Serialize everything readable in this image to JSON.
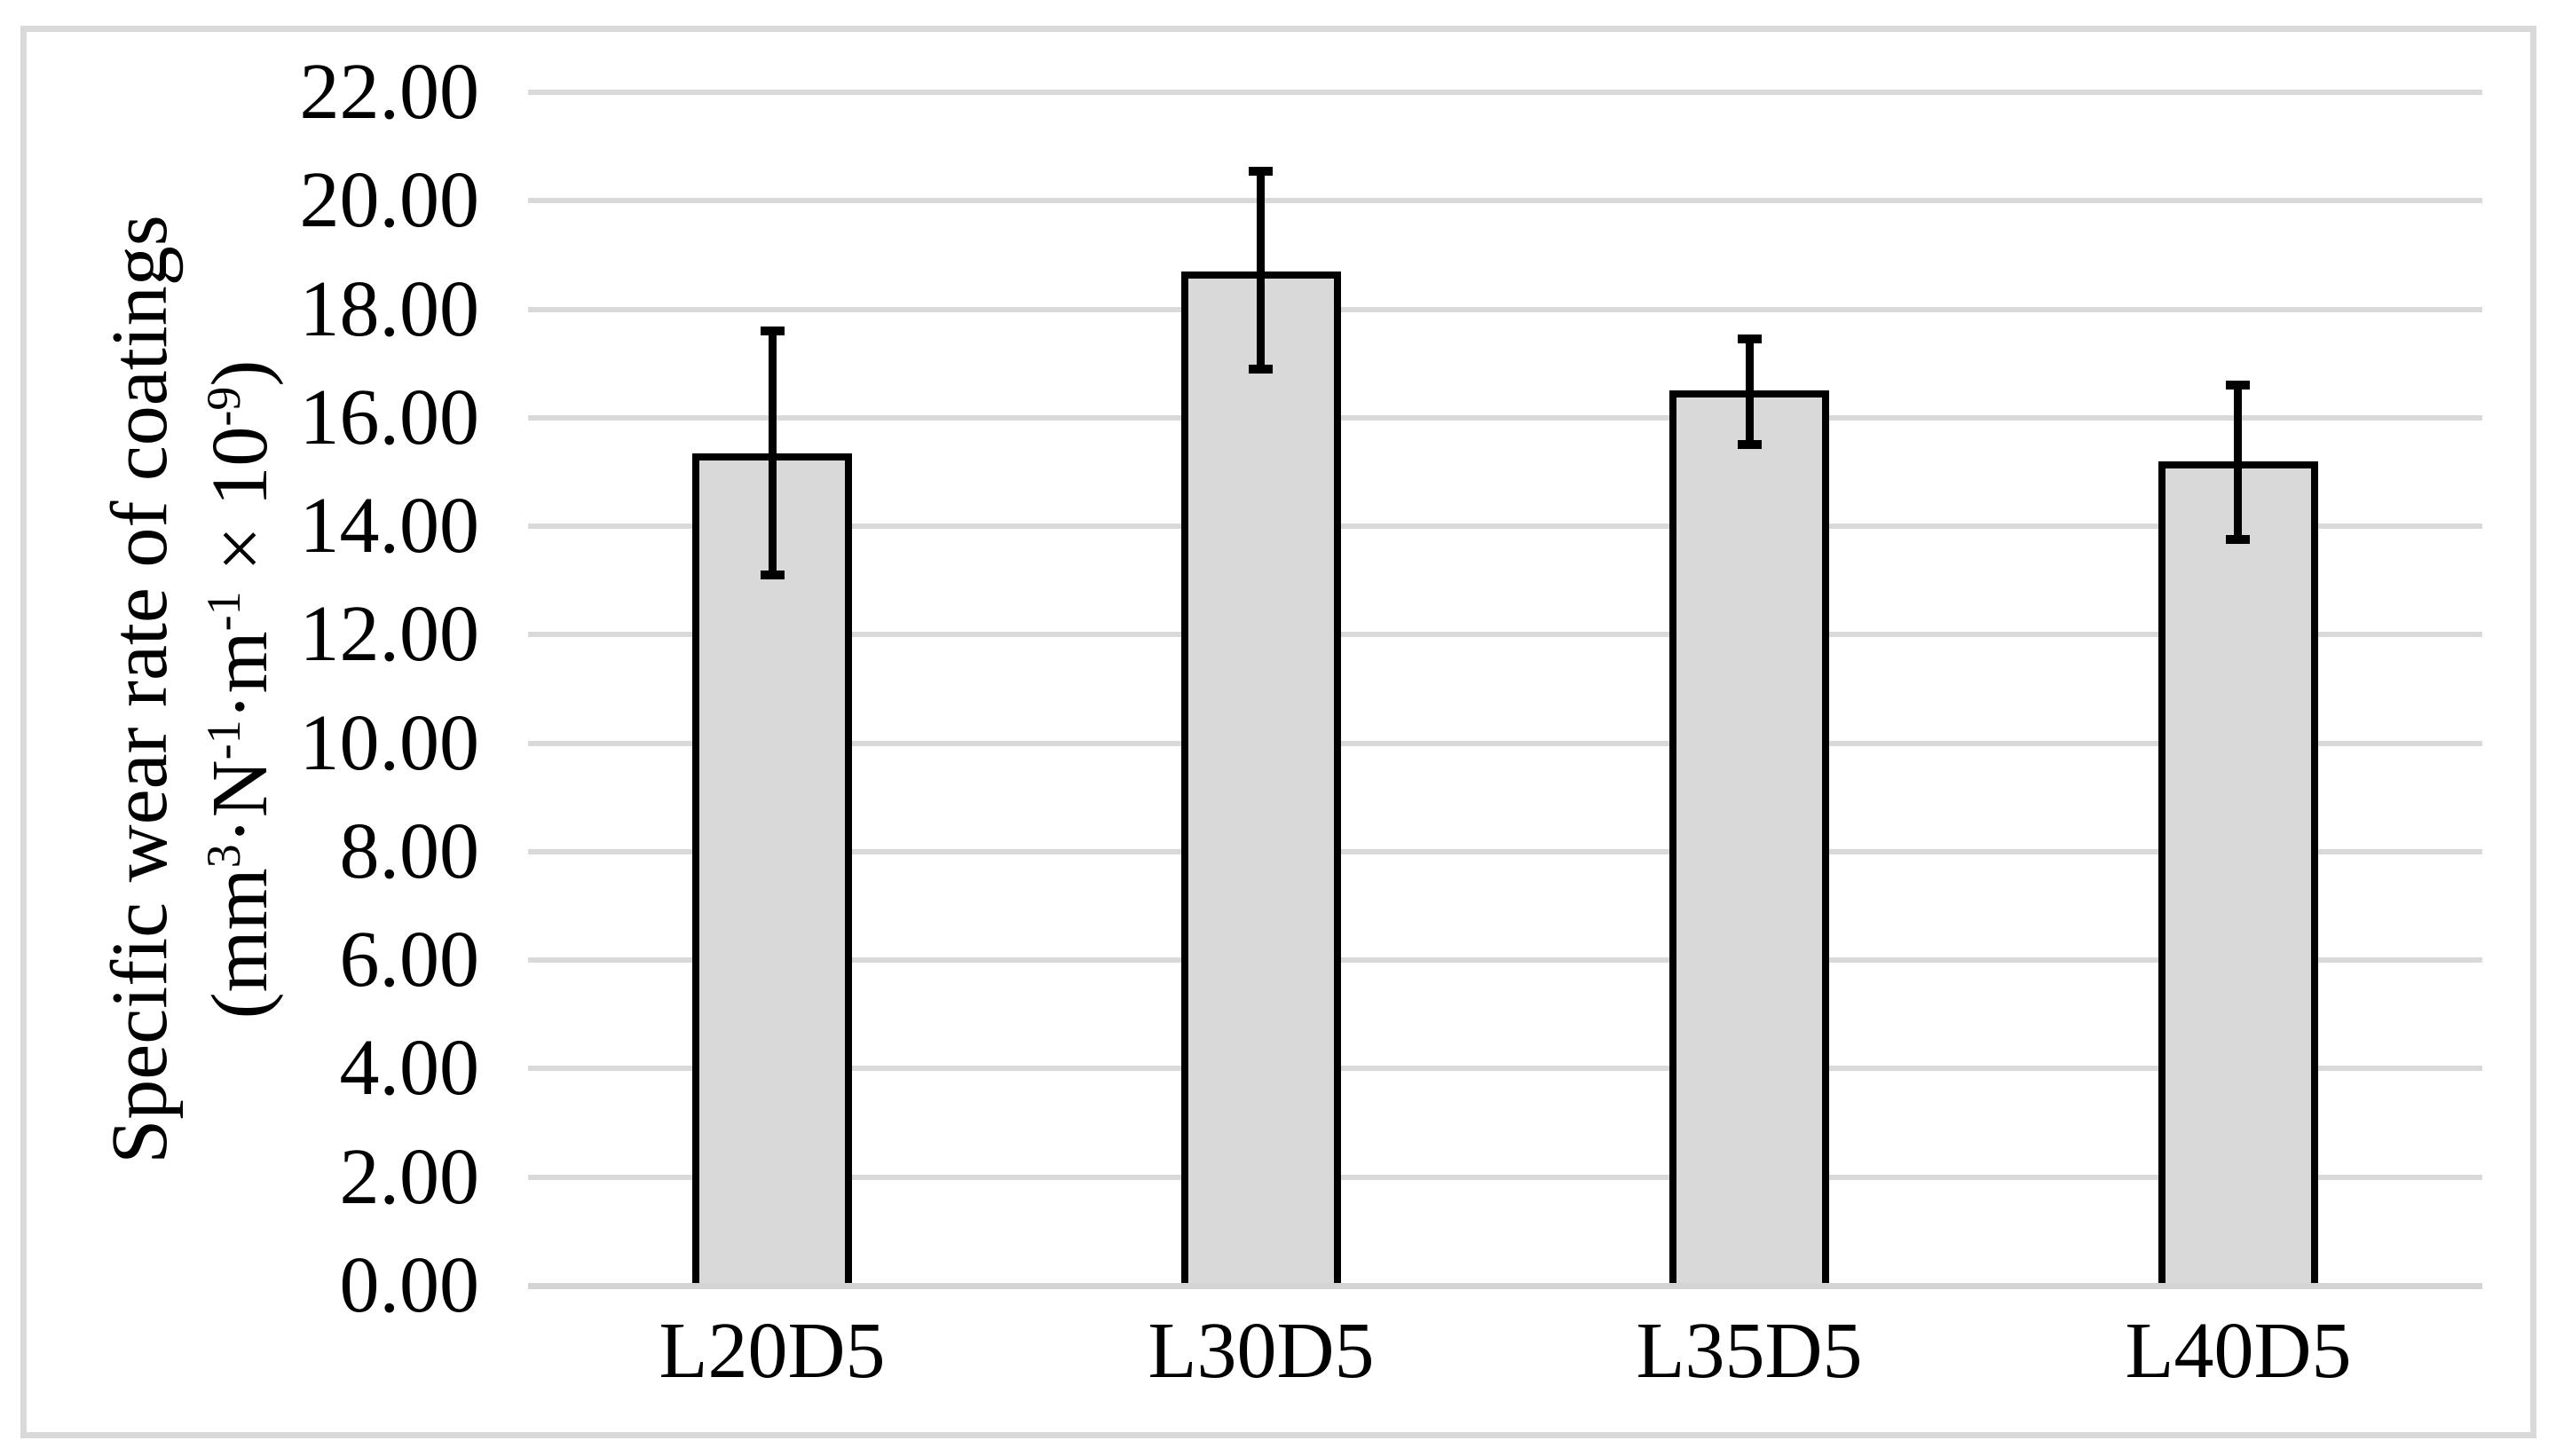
{
  "figure": {
    "background": "#FFFFFF",
    "border_color": "#D9D9D9"
  },
  "chart_data": {
    "type": "bar",
    "title": "",
    "categories": [
      "L20D5",
      "L30D5",
      "L35D5",
      "L40D5"
    ],
    "values": [
      15.35,
      18.7,
      16.5,
      15.2
    ],
    "error_low": [
      13.1,
      16.9,
      15.5,
      13.75
    ],
    "error_high": [
      17.6,
      20.55,
      17.45,
      16.6
    ],
    "xlabel": "",
    "ylabel_line1": "Specific wear rate of coatings",
    "ylabel_line2_plain": "(mm3·N-1·m-1 × 10-9)",
    "ylabel_line2_parts": [
      [
        "(mm",
        "3"
      ],
      [
        "·N",
        "-1"
      ],
      [
        "·m",
        "-1"
      ],
      [
        " × 10",
        "-9"
      ],
      [
        ")",
        ""
      ]
    ],
    "ylim": [
      0,
      22
    ],
    "ytick_step": 2,
    "ytick_values": [
      0,
      2,
      4,
      6,
      8,
      10,
      12,
      14,
      16,
      18,
      20,
      22
    ],
    "ytick_labels": [
      "0.00",
      "2.00",
      "4.00",
      "6.00",
      "8.00",
      "10.00",
      "12.00",
      "14.00",
      "16.00",
      "18.00",
      "20.00",
      "22.00"
    ],
    "grid": true,
    "legend": "none",
    "colors": {
      "bar_fill": "#D9D9D9",
      "bar_border": "#000000",
      "error_bar": "#000000",
      "gridline": "#D9D9D9",
      "axis_line": "#D4D4D4",
      "text": "#000000"
    }
  }
}
